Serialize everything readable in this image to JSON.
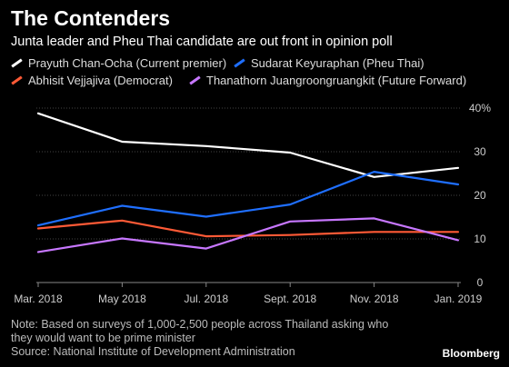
{
  "chart_data": {
    "type": "line",
    "title": "The Contenders",
    "subtitle": "Junta leader and Pheu Thai candidate are out front in opinion poll",
    "x": [
      "Mar. 2018",
      "May 2018",
      "Jul. 2018",
      "Sept. 2018",
      "Nov. 2018",
      "Jan. 2019"
    ],
    "ylim": [
      0,
      40
    ],
    "yticks": [
      0,
      10,
      20,
      30,
      40
    ],
    "ytick_labels": [
      "0",
      "10",
      "20",
      "30",
      "40%"
    ],
    "grid": true,
    "legend_position": "top-left",
    "series": [
      {
        "name": "Prayuth Chan-Ocha (Current premier)",
        "color": "#ffffff",
        "values": [
          38.8,
          32.3,
          31.3,
          29.8,
          24.2,
          26.3
        ]
      },
      {
        "name": "Sudarat Keyuraphan (Pheu Thai)",
        "color": "#1f6fff",
        "values": [
          13.1,
          17.6,
          15.1,
          17.9,
          25.4,
          22.5
        ]
      },
      {
        "name": "Abhisit Vejjajiva (Democrat)",
        "color": "#ff5a36",
        "values": [
          12.4,
          14.2,
          10.6,
          10.9,
          11.6,
          11.6
        ]
      },
      {
        "name": "Thanathorn Juangroongruangkit (Future Forward)",
        "color": "#c777ff",
        "values": [
          7.0,
          10.1,
          7.8,
          14.0,
          14.7,
          9.7
        ]
      }
    ]
  },
  "note": "Note: Based on surveys of 1,000-2,500 people across Thailand asking who they would want to be prime minister",
  "source": "Source: National Institute of Development Administration",
  "brand": "Bloomberg"
}
